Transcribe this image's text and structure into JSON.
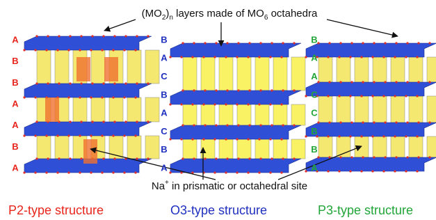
{
  "top_annotation": {
    "segments": [
      {
        "text": "(MO"
      },
      {
        "text": "2",
        "sub": true
      },
      {
        "text": ")"
      },
      {
        "text": "n",
        "sub": true
      },
      {
        "text": " layers made of MO"
      },
      {
        "text": "6",
        "sub": true
      },
      {
        "text": " octahedra"
      }
    ]
  },
  "bottom_annotation": {
    "segments": [
      {
        "text": "Na"
      },
      {
        "text": "+",
        "sup": true
      },
      {
        "text": " in prismatic or octahedral site"
      }
    ]
  },
  "structures": [
    {
      "caption": "P2-type structure",
      "color": "#e8251c",
      "stacking": [
        "A",
        "B",
        "B",
        "A",
        "A",
        "B",
        "A"
      ]
    },
    {
      "caption": "O3-type structure",
      "color": "#1f2fbf",
      "stacking": [
        "B",
        "A",
        "C",
        "B",
        "A",
        "C",
        "B",
        "A"
      ]
    },
    {
      "caption": "P3-type structure",
      "color": "#22a538",
      "stacking": [
        "B",
        "A",
        "A",
        "C",
        "C",
        "B",
        "B",
        "A"
      ]
    }
  ]
}
